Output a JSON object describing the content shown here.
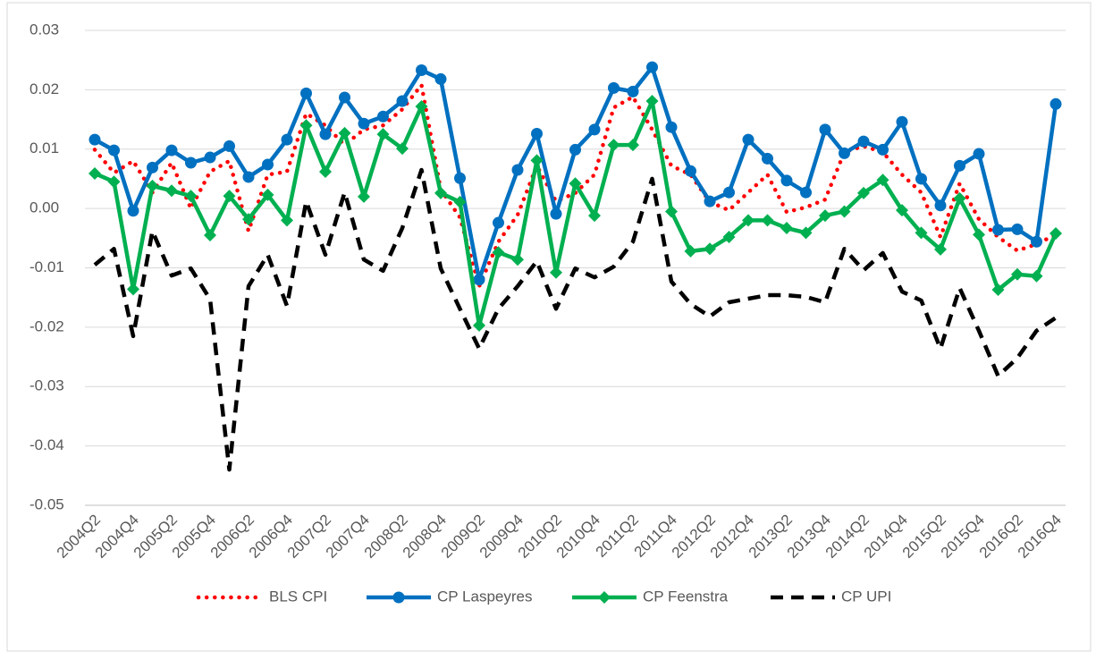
{
  "chart_data": {
    "type": "line",
    "categories": [
      "2004Q2",
      null,
      "2004Q4",
      null,
      "2005Q2",
      null,
      "2005Q4",
      null,
      "2006Q2",
      null,
      "2006Q4",
      null,
      "2007Q2",
      null,
      "2007Q4",
      null,
      "2008Q2",
      null,
      "2008Q4",
      null,
      "2009Q2",
      null,
      "2009Q4",
      null,
      "2010Q2",
      null,
      "2010Q4",
      null,
      "2011Q2",
      null,
      "2011Q4",
      null,
      "2012Q2",
      null,
      "2012Q4",
      null,
      "2013Q2",
      null,
      "2013Q4",
      null,
      "2014Q2",
      null,
      "2014Q4",
      null,
      "2015Q2",
      null,
      "2015Q4",
      null,
      "2016Q2",
      null,
      "2016Q4"
    ],
    "series": [
      {
        "name": "BLS CPI",
        "color": "#ff0000",
        "line_style": "dotted",
        "marker": "none",
        "values": [
          0.0099,
          0.006,
          0.008,
          0.0027,
          0.0077,
          0.0,
          0.0062,
          0.008,
          -0.0038,
          0.0057,
          0.0062,
          0.016,
          0.014,
          0.0107,
          0.0133,
          0.014,
          0.0167,
          0.0208,
          0.0032,
          -0.0015,
          -0.0131,
          -0.0056,
          -0.0011,
          0.0072,
          0.0012,
          0.0026,
          0.0057,
          0.017,
          0.0188,
          0.0133,
          0.0072,
          0.0057,
          0.0011,
          -0.0003,
          0.0027,
          0.0057,
          -0.0006,
          0.0002,
          0.0015,
          0.0095,
          0.0105,
          0.0095,
          0.0057,
          0.0027,
          -0.0048,
          0.0042,
          -0.0018,
          -0.0048,
          -0.0071,
          -0.006,
          -0.0044
        ]
      },
      {
        "name": "CP Laspeyres",
        "color": "#0070c0",
        "line_style": "solid",
        "marker": "circle",
        "values": [
          0.0116,
          0.0098,
          -0.0004,
          0.0069,
          0.0098,
          0.0077,
          0.0086,
          0.0105,
          0.0053,
          0.0074,
          0.0116,
          0.0194,
          0.0125,
          0.0187,
          0.0143,
          0.0155,
          0.0181,
          0.0233,
          0.0218,
          0.0051,
          -0.012,
          -0.0024,
          0.0065,
          0.0126,
          -0.0009,
          0.0099,
          0.0133,
          0.0203,
          0.0197,
          0.0238,
          0.0137,
          0.0063,
          0.0012,
          0.0027,
          0.0116,
          0.0084,
          0.0047,
          0.0027,
          0.0133,
          0.0093,
          0.0113,
          0.0099,
          0.0146,
          0.005,
          0.0005,
          0.0072,
          0.0092,
          -0.0036,
          -0.0035,
          -0.0056,
          0.0176
        ]
      },
      {
        "name": "CP Feenstra",
        "color": "#00b050",
        "line_style": "solid",
        "marker": "diamond",
        "values": [
          0.0059,
          0.0045,
          -0.0136,
          0.0038,
          0.003,
          0.0021,
          -0.0045,
          0.0021,
          -0.0018,
          0.0023,
          -0.002,
          0.014,
          0.0062,
          0.0127,
          0.002,
          0.0125,
          0.0101,
          0.0172,
          0.0026,
          0.0011,
          -0.0197,
          -0.0074,
          -0.0086,
          0.0081,
          -0.0108,
          0.0042,
          -0.0012,
          0.0107,
          0.0107,
          0.0181,
          -0.0005,
          -0.0072,
          -0.0068,
          -0.0048,
          -0.002,
          -0.002,
          -0.0033,
          -0.0041,
          -0.0012,
          -0.0005,
          0.0026,
          0.0048,
          -0.0003,
          -0.0041,
          -0.0069,
          0.0017,
          -0.0044,
          -0.0137,
          -0.0111,
          -0.0114,
          -0.0042
        ]
      },
      {
        "name": "CP UPI",
        "color": "#000000",
        "line_style": "dashed",
        "marker": "none",
        "values": [
          -0.0095,
          -0.0068,
          -0.0215,
          -0.0038,
          -0.0113,
          -0.0101,
          -0.0153,
          -0.044,
          -0.0131,
          -0.0078,
          -0.0164,
          0.0012,
          -0.0078,
          0.0027,
          -0.0086,
          -0.0105,
          -0.0033,
          0.0065,
          -0.0101,
          -0.0169,
          -0.0236,
          -0.0169,
          -0.0131,
          -0.0089,
          -0.0169,
          -0.0101,
          -0.0116,
          -0.0098,
          -0.0056,
          0.005,
          -0.0123,
          -0.0161,
          -0.0182,
          -0.0158,
          -0.0152,
          -0.0146,
          -0.0146,
          -0.0149,
          -0.0158,
          -0.0068,
          -0.0104,
          -0.0075,
          -0.014,
          -0.0155,
          -0.0236,
          -0.0134,
          -0.0206,
          -0.0282,
          -0.0252,
          -0.0206,
          -0.0184
        ]
      }
    ],
    "ylim": [
      -0.05,
      0.03
    ],
    "yticks": [
      -0.05,
      -0.04,
      -0.03,
      -0.02,
      -0.01,
      {
        "value": 0,
        "label": "0.00"
      },
      0.01,
      0.02,
      0.03
    ],
    "grid": true,
    "legend": "bottom"
  }
}
